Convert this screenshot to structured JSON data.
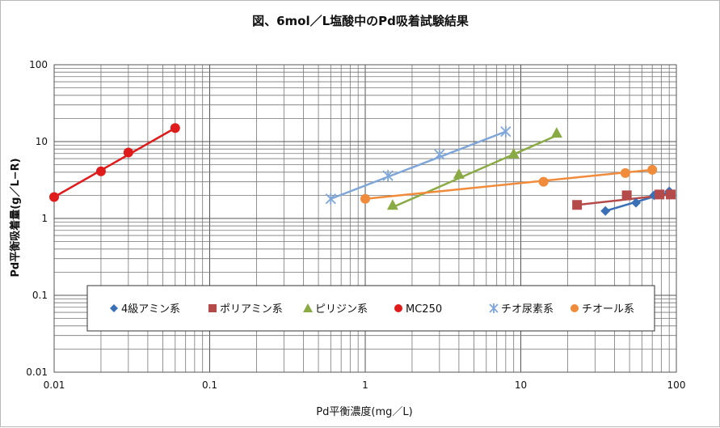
{
  "chart_data": {
    "type": "scatter",
    "title": "図、6mol／L塩酸中のPd吸着試験結果",
    "xlabel": "Pd平衡濃度(mg／L)",
    "ylabel": "Pd平衡吸着量(g／L−R)",
    "x_scale": "log",
    "y_scale": "log",
    "xlim": [
      0.01,
      100
    ],
    "ylim": [
      0.01,
      100
    ],
    "x_ticks": [
      "0.01",
      "0.1",
      "1",
      "10",
      "100"
    ],
    "y_ticks": [
      "0.01",
      "0.1",
      "1",
      "10",
      "100"
    ],
    "grid": true,
    "legend_position": "bottom-inside",
    "series": [
      {
        "name": "4級アミン系",
        "color": "#3b6fb6",
        "marker": "diamond",
        "points": [
          [
            35,
            1.25
          ],
          [
            55,
            1.6
          ],
          [
            72,
            2.0
          ],
          [
            90,
            2.25
          ]
        ],
        "trend": [
          [
            35,
            1.25
          ],
          [
            90,
            2.2
          ]
        ]
      },
      {
        "name": "ポリアミン系",
        "color": "#b44a4a",
        "marker": "square",
        "points": [
          [
            23,
            1.5
          ],
          [
            48,
            2.0
          ],
          [
            78,
            2.05
          ],
          [
            92,
            2.05
          ]
        ],
        "trend": [
          [
            23,
            1.5
          ],
          [
            92,
            2.05
          ]
        ]
      },
      {
        "name": "ピリジン系",
        "color": "#8aaa44",
        "marker": "triangle",
        "points": [
          [
            1.5,
            1.5
          ],
          [
            4,
            3.8
          ],
          [
            9,
            7.0
          ],
          [
            17,
            13
          ]
        ],
        "trend": [
          [
            1.5,
            1.4
          ],
          [
            17,
            12
          ]
        ]
      },
      {
        "name": "MC250",
        "color": "#e01b1b",
        "marker": "circle",
        "points": [
          [
            0.01,
            1.9
          ],
          [
            0.02,
            4.1
          ],
          [
            0.03,
            7.2
          ],
          [
            0.06,
            15
          ]
        ],
        "trend": [
          [
            0.01,
            1.9
          ],
          [
            0.06,
            15
          ]
        ]
      },
      {
        "name": "チオ尿素系",
        "color": "#7fa6d8",
        "marker": "star",
        "points": [
          [
            0.6,
            1.8
          ],
          [
            1.4,
            3.6
          ],
          [
            3,
            6.8
          ],
          [
            8,
            13.5
          ]
        ],
        "trend": [
          [
            0.6,
            1.8
          ],
          [
            8,
            13.5
          ]
        ]
      },
      {
        "name": "チオール系",
        "color": "#f08b3c",
        "marker": "circle",
        "points": [
          [
            1,
            1.8
          ],
          [
            14,
            3.0
          ],
          [
            47,
            3.9
          ],
          [
            70,
            4.3
          ]
        ],
        "trend": [
          [
            1,
            1.8
          ],
          [
            70,
            4.3
          ]
        ]
      }
    ]
  }
}
